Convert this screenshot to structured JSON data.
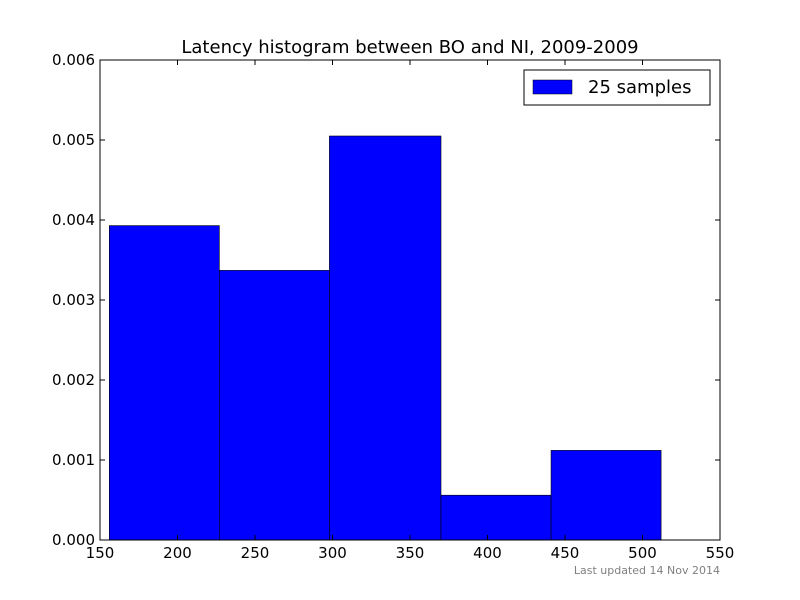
{
  "chart_data": {
    "type": "bar",
    "title": "Latency histogram between BO and NI, 2009-2009",
    "xlabel": "",
    "ylabel": "",
    "xlim": [
      150,
      550
    ],
    "ylim": [
      0,
      0.006
    ],
    "x_ticks": [
      "150",
      "200",
      "250",
      "300",
      "350",
      "400",
      "450",
      "500",
      "550"
    ],
    "y_ticks": [
      "0.000",
      "0.001",
      "0.002",
      "0.003",
      "0.004",
      "0.005",
      "0.006"
    ],
    "bins": [
      {
        "x_start": 156,
        "x_end": 227,
        "value": 0.00393
      },
      {
        "x_start": 227,
        "x_end": 298,
        "value": 0.00337
      },
      {
        "x_start": 298,
        "x_end": 370,
        "value": 0.00505
      },
      {
        "x_start": 370,
        "x_end": 441,
        "value": 0.00056
      },
      {
        "x_start": 441,
        "x_end": 512,
        "value": 0.00112
      }
    ],
    "series": [
      {
        "name": "25 samples",
        "color": "#0000ff"
      }
    ],
    "legend_position": "top-right",
    "grid": false
  },
  "footer": {
    "text": "Last updated 14 Nov 2014",
    "color": "#808080"
  }
}
